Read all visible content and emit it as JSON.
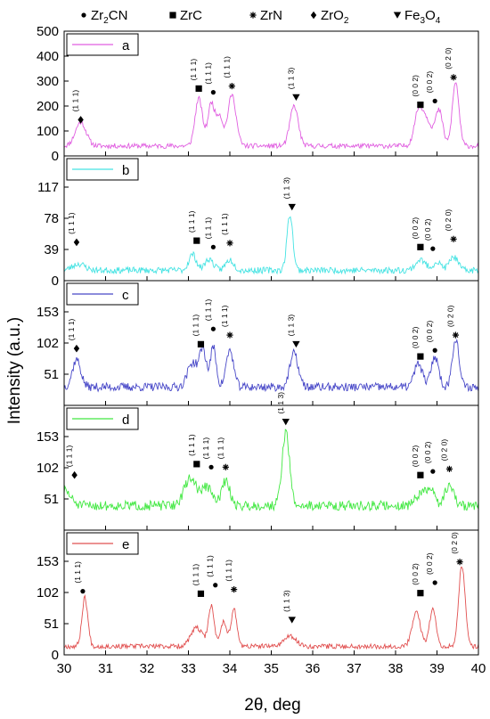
{
  "chart_data": {
    "type": "line",
    "xlabel": "2θ, deg",
    "ylabel": "Intensity (a.u.)",
    "xlim": [
      30,
      40
    ],
    "x_ticks": [
      "30",
      "31",
      "32",
      "33",
      "34",
      "35",
      "36",
      "37",
      "38",
      "39",
      "40"
    ],
    "phase_legend": [
      {
        "symbol": "circle",
        "glyph": "●",
        "label": "Zr2CN",
        "text_parts": [
          "Zr",
          "2",
          "CN"
        ]
      },
      {
        "symbol": "square",
        "glyph": "■",
        "label": "ZrC",
        "text_parts": [
          "ZrC",
          "",
          ""
        ]
      },
      {
        "symbol": "asterisk",
        "glyph": "⁕",
        "label": "ZrN",
        "text_parts": [
          "ZrN",
          "",
          ""
        ]
      },
      {
        "symbol": "diamond",
        "glyph": "◆",
        "label": "ZrO2",
        "text_parts": [
          "ZrO",
          "2",
          ""
        ]
      },
      {
        "symbol": "triangle-down",
        "glyph": "▼",
        "label": "Fe3O4",
        "text_parts": [
          "Fe",
          "3",
          "O",
          "4"
        ]
      }
    ],
    "series": [
      {
        "name": "a",
        "color": "#e05ee0",
        "ylim": [
          0,
          500
        ],
        "yticks": [
          0,
          100,
          200,
          300,
          400,
          500
        ],
        "baseline": 40,
        "noise": 10,
        "seed": 11,
        "peaks": [
          [
            30.4,
            95,
            0.13
          ],
          [
            33.25,
            190,
            0.09
          ],
          [
            33.55,
            170,
            0.08
          ],
          [
            33.75,
            120,
            0.08
          ],
          [
            34.05,
            205,
            0.1
          ],
          [
            35.55,
            160,
            0.1
          ],
          [
            38.55,
            130,
            0.1
          ],
          [
            38.75,
            100,
            0.12
          ],
          [
            39.05,
            140,
            0.09
          ],
          [
            39.45,
            255,
            0.08
          ]
        ],
        "annotations": [
          {
            "x": 30.4,
            "marker": "diamond",
            "label": "(1 1 1)",
            "y": 145
          },
          {
            "x": 33.25,
            "marker": "square",
            "label": "(1 1 1)",
            "y": 270
          },
          {
            "x": 33.6,
            "marker": "circle",
            "label": "(1 1 1)",
            "y": 255
          },
          {
            "x": 34.05,
            "marker": "asterisk",
            "label": "(1 1 1)",
            "y": 280
          },
          {
            "x": 35.6,
            "marker": "triangle-down",
            "label": "(1 1 3)",
            "y": 235
          },
          {
            "x": 38.6,
            "marker": "square",
            "label": "(0 0 2)",
            "y": 205
          },
          {
            "x": 38.95,
            "marker": "circle",
            "label": "(0 0 2)",
            "y": 220
          },
          {
            "x": 39.4,
            "marker": "asterisk",
            "label": "(0 2 0)",
            "y": 315
          }
        ]
      },
      {
        "name": "b",
        "color": "#45e3e3",
        "ylim": [
          0,
          156
        ],
        "yticks": [
          0,
          39,
          78,
          117
        ],
        "baseline": 13,
        "noise": 4,
        "seed": 23,
        "peaks": [
          [
            30.35,
            8,
            0.15
          ],
          [
            33.1,
            20,
            0.09
          ],
          [
            33.5,
            14,
            0.1
          ],
          [
            34.0,
            13,
            0.1
          ],
          [
            35.45,
            70,
            0.07
          ],
          [
            38.6,
            13,
            0.12
          ],
          [
            39.0,
            10,
            0.1
          ],
          [
            39.4,
            17,
            0.1
          ]
        ],
        "annotations": [
          {
            "x": 30.3,
            "marker": "diamond",
            "label": "(1 1 1)",
            "y": 48
          },
          {
            "x": 33.2,
            "marker": "square",
            "label": "(1 1 1)",
            "y": 50
          },
          {
            "x": 33.6,
            "marker": "circle",
            "label": "(1 1 1)",
            "y": 42
          },
          {
            "x": 34.0,
            "marker": "asterisk",
            "label": "(1 1 1)",
            "y": 47
          },
          {
            "x": 35.5,
            "marker": "triangle-down",
            "label": "(1 1 3)",
            "y": 92
          },
          {
            "x": 38.6,
            "marker": "square",
            "label": "(0 0 2)",
            "y": 42
          },
          {
            "x": 38.9,
            "marker": "circle",
            "label": "(0 0 2)",
            "y": 40
          },
          {
            "x": 39.4,
            "marker": "asterisk",
            "label": "(0 2 0)",
            "y": 52
          }
        ]
      },
      {
        "name": "c",
        "color": "#4848c8",
        "ylim": [
          0,
          204
        ],
        "yticks": [
          51,
          102,
          153
        ],
        "baseline": 30,
        "noise": 7,
        "seed": 37,
        "peaks": [
          [
            30.3,
            45,
            0.1
          ],
          [
            33.1,
            40,
            0.12
          ],
          [
            33.35,
            60,
            0.08
          ],
          [
            33.6,
            65,
            0.07
          ],
          [
            34.0,
            60,
            0.09
          ],
          [
            35.55,
            55,
            0.1
          ],
          [
            38.55,
            38,
            0.1
          ],
          [
            38.95,
            50,
            0.09
          ],
          [
            39.45,
            80,
            0.08
          ]
        ],
        "annotations": [
          {
            "x": 30.3,
            "marker": "diamond",
            "label": "(1 1 1)",
            "y": 93
          },
          {
            "x": 33.3,
            "marker": "square",
            "label": "(1 1 1)",
            "y": 100
          },
          {
            "x": 33.6,
            "marker": "circle",
            "label": "(1 1 1)",
            "y": 125
          },
          {
            "x": 34.0,
            "marker": "asterisk",
            "label": "(1 1 1)",
            "y": 115
          },
          {
            "x": 35.6,
            "marker": "triangle-down",
            "label": "(1 1 3)",
            "y": 100
          },
          {
            "x": 38.6,
            "marker": "square",
            "label": "(0 0 2)",
            "y": 80
          },
          {
            "x": 38.95,
            "marker": "circle",
            "label": "(0 0 2)",
            "y": 90
          },
          {
            "x": 39.45,
            "marker": "asterisk",
            "label": "(0 2 0)",
            "y": 115
          }
        ]
      },
      {
        "name": "d",
        "color": "#42e842",
        "ylim": [
          0,
          204
        ],
        "yticks": [
          51,
          102,
          153
        ],
        "baseline": 40,
        "noise": 8,
        "seed": 51,
        "peaks": [
          [
            30.0,
            25,
            0.15
          ],
          [
            33.05,
            45,
            0.15
          ],
          [
            33.45,
            30,
            0.12
          ],
          [
            33.9,
            40,
            0.1
          ],
          [
            35.35,
            120,
            0.09
          ],
          [
            38.6,
            20,
            0.12
          ],
          [
            38.85,
            25,
            0.1
          ],
          [
            39.3,
            35,
            0.1
          ]
        ],
        "annotations": [
          {
            "x": 30.25,
            "marker": "diamond",
            "label": "(1 1 1)",
            "y": 90
          },
          {
            "x": 33.2,
            "marker": "square",
            "label": "(1 1 1)",
            "y": 108
          },
          {
            "x": 33.55,
            "marker": "circle",
            "label": "(1 1 1)",
            "y": 103
          },
          {
            "x": 33.9,
            "marker": "asterisk",
            "label": "(1 1 1)",
            "y": 103
          },
          {
            "x": 35.35,
            "marker": "triangle-down",
            "label": "(1 1 3)",
            "y": 177
          },
          {
            "x": 38.6,
            "marker": "square",
            "label": "(0 0 2)",
            "y": 90
          },
          {
            "x": 38.9,
            "marker": "circle",
            "label": "(0 0 2)",
            "y": 96
          },
          {
            "x": 39.3,
            "marker": "asterisk",
            "label": "(0 2 0)",
            "y": 100
          }
        ]
      },
      {
        "name": "e",
        "color": "#e15050",
        "ylim": [
          0,
          204
        ],
        "yticks": [
          0,
          51,
          102,
          153
        ],
        "baseline": 14,
        "noise": 4,
        "seed": 67,
        "peaks": [
          [
            30.5,
            80,
            0.07
          ],
          [
            33.2,
            30,
            0.14
          ],
          [
            33.55,
            65,
            0.07
          ],
          [
            33.85,
            40,
            0.08
          ],
          [
            34.1,
            60,
            0.07
          ],
          [
            35.45,
            16,
            0.15
          ],
          [
            38.5,
            55,
            0.1
          ],
          [
            38.9,
            60,
            0.08
          ],
          [
            39.6,
            130,
            0.08
          ]
        ],
        "annotations": [
          {
            "x": 30.45,
            "marker": "circle",
            "label": "(1 1 1)",
            "y": 104
          },
          {
            "x": 33.3,
            "marker": "square",
            "label": "(1 1 1)",
            "y": 100
          },
          {
            "x": 33.65,
            "marker": "circle",
            "label": "(1 1 1)",
            "y": 114
          },
          {
            "x": 34.1,
            "marker": "asterisk",
            "label": "(1 1 1)",
            "y": 107
          },
          {
            "x": 35.5,
            "marker": "triangle-down",
            "label": "(1 1 3)",
            "y": 57
          },
          {
            "x": 38.6,
            "marker": "square",
            "label": "(0 0 2)",
            "y": 101
          },
          {
            "x": 38.95,
            "marker": "circle",
            "label": "(0 0 2)",
            "y": 118
          },
          {
            "x": 39.55,
            "marker": "asterisk",
            "label": "(0 2 0)",
            "y": 152
          }
        ]
      }
    ]
  }
}
